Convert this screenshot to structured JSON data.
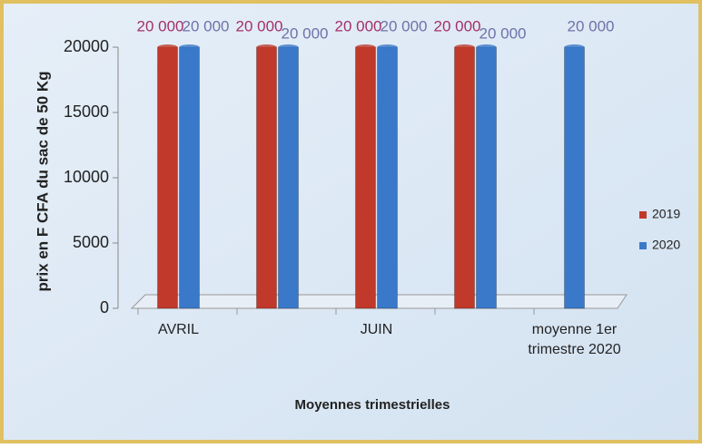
{
  "chart_data": {
    "type": "bar",
    "categories": [
      "AVRIL",
      null,
      "JUIN",
      null,
      "moyenne 1er trimestre 2020"
    ],
    "series": [
      {
        "name": "2019",
        "color": "#c0392b",
        "values": [
          20000,
          20000,
          20000,
          20000,
          null
        ],
        "value_labels": [
          "20 000",
          "20 000",
          "20 000",
          "20 000",
          null
        ]
      },
      {
        "name": "2020",
        "color": "#3a78c9",
        "values": [
          20000,
          20000,
          20000,
          20000,
          20000
        ],
        "value_labels": [
          "20 000",
          "20 000",
          "20 000",
          "20 000",
          "20 000"
        ]
      }
    ],
    "ylim": [
      0,
      20000
    ],
    "yticks": [
      0,
      5000,
      10000,
      15000,
      20000
    ],
    "y_label": "prix en F CFA du sac de 50 Kg",
    "x_label": "Moyennes trimestrielles",
    "legend": "right"
  }
}
